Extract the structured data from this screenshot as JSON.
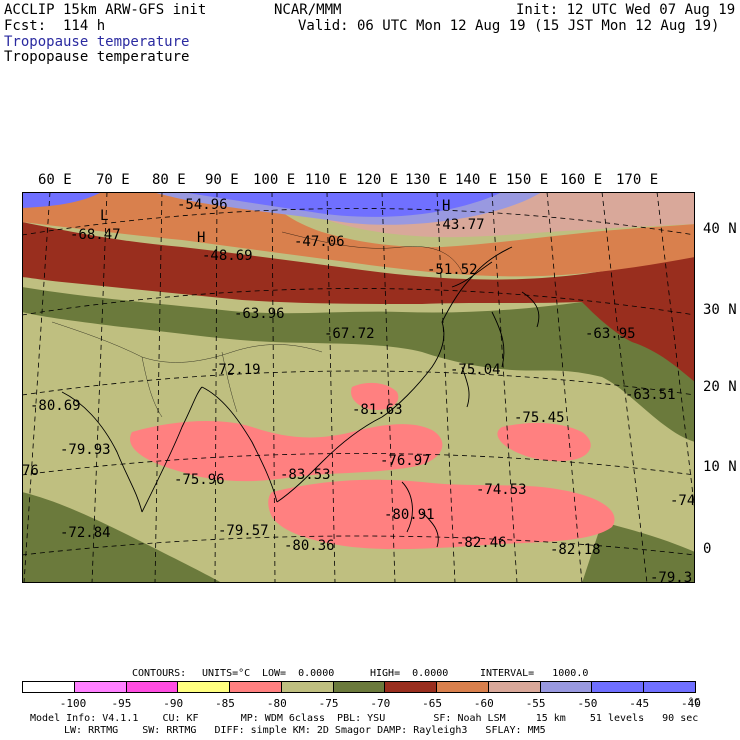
{
  "header": {
    "model": "ACCLIP 15km ARW-GFS init",
    "org": "NCAR/MMM",
    "init": "Init: 12 UTC Wed 07 Aug 19",
    "fcst": "Fcst:  114 h",
    "valid": "Valid: 06 UTC Mon 12 Aug 19 (15 JST Mon 12 Aug 19)",
    "field_title_1": "Tropopause temperature",
    "field_title_2": "Tropopause temperature"
  },
  "map": {
    "lon_labels": [
      "60 E",
      "70 E",
      "80 E",
      "90 E",
      "100 E",
      "110 E",
      "120 E",
      "130 E",
      "140 E",
      "150 E",
      "160 E",
      "170 E"
    ],
    "lat_labels": [
      "40 N",
      "30 N",
      "20 N",
      "10 N",
      "0"
    ],
    "annotations": [
      {
        "t": "-54.96"
      },
      {
        "t": "-68.47"
      },
      {
        "t": "H"
      },
      {
        "t": "-48.69"
      },
      {
        "t": "-47.06"
      },
      {
        "t": "-43.77"
      },
      {
        "t": "-51.52"
      },
      {
        "t": "-63.96"
      },
      {
        "t": "-67.72"
      },
      {
        "t": "-63.95"
      },
      {
        "t": "-72.19"
      },
      {
        "t": "-75.04"
      },
      {
        "t": "-63.51"
      },
      {
        "t": "-80.69"
      },
      {
        "t": "-81.63"
      },
      {
        "t": "-75.45"
      },
      {
        "t": "-79.93"
      },
      {
        "t": "-76.97"
      },
      {
        "t": "-75.96"
      },
      {
        "t": "-83.53"
      },
      {
        "t": "-74.53"
      },
      {
        "t": "-74"
      },
      {
        "t": "-72.84"
      },
      {
        "t": "-79.57"
      },
      {
        "t": "-80.91"
      },
      {
        "t": "-82.46"
      },
      {
        "t": "-82.18"
      },
      {
        "t": "-80.36"
      },
      {
        "t": "-79.3"
      },
      {
        "t": "76"
      },
      {
        "t": "L"
      },
      {
        "t": "H"
      }
    ]
  },
  "contours": {
    "label": "CONTOURS:",
    "units": "UNITS=°C",
    "low": "LOW=  0.0000",
    "high": "HIGH=  0.0000",
    "interval": "INTERVAL=   1000.0"
  },
  "colorbar": {
    "colors": [
      "#ffffff",
      "#ff80ff",
      "#ff4de1",
      "#ffff80",
      "#ff8080",
      "#bfbf80",
      "#6b7a3c",
      "#992e1e",
      "#d9804d",
      "#d9a89a",
      "#9999e0",
      "#6f6fff",
      "#7070ff"
    ],
    "ticks": [
      "-100",
      "-95",
      "-90",
      "-85",
      "-80",
      "-75",
      "-70",
      "-65",
      "-60",
      "-55",
      "-50",
      "-45",
      "-40"
    ],
    "unit_label": "°C"
  },
  "footer": {
    "line1": "Model Info: V4.1.1    CU: KF       MP: WDM 6class  PBL: YSU        SF: Noah LSM     15 km    51 levels   90 sec",
    "line2": "LW: RRTMG    SW: RRTMG   DIFF: simple KM: 2D Smagor DAMP: Rayleigh3   SFLAY: MM5"
  }
}
